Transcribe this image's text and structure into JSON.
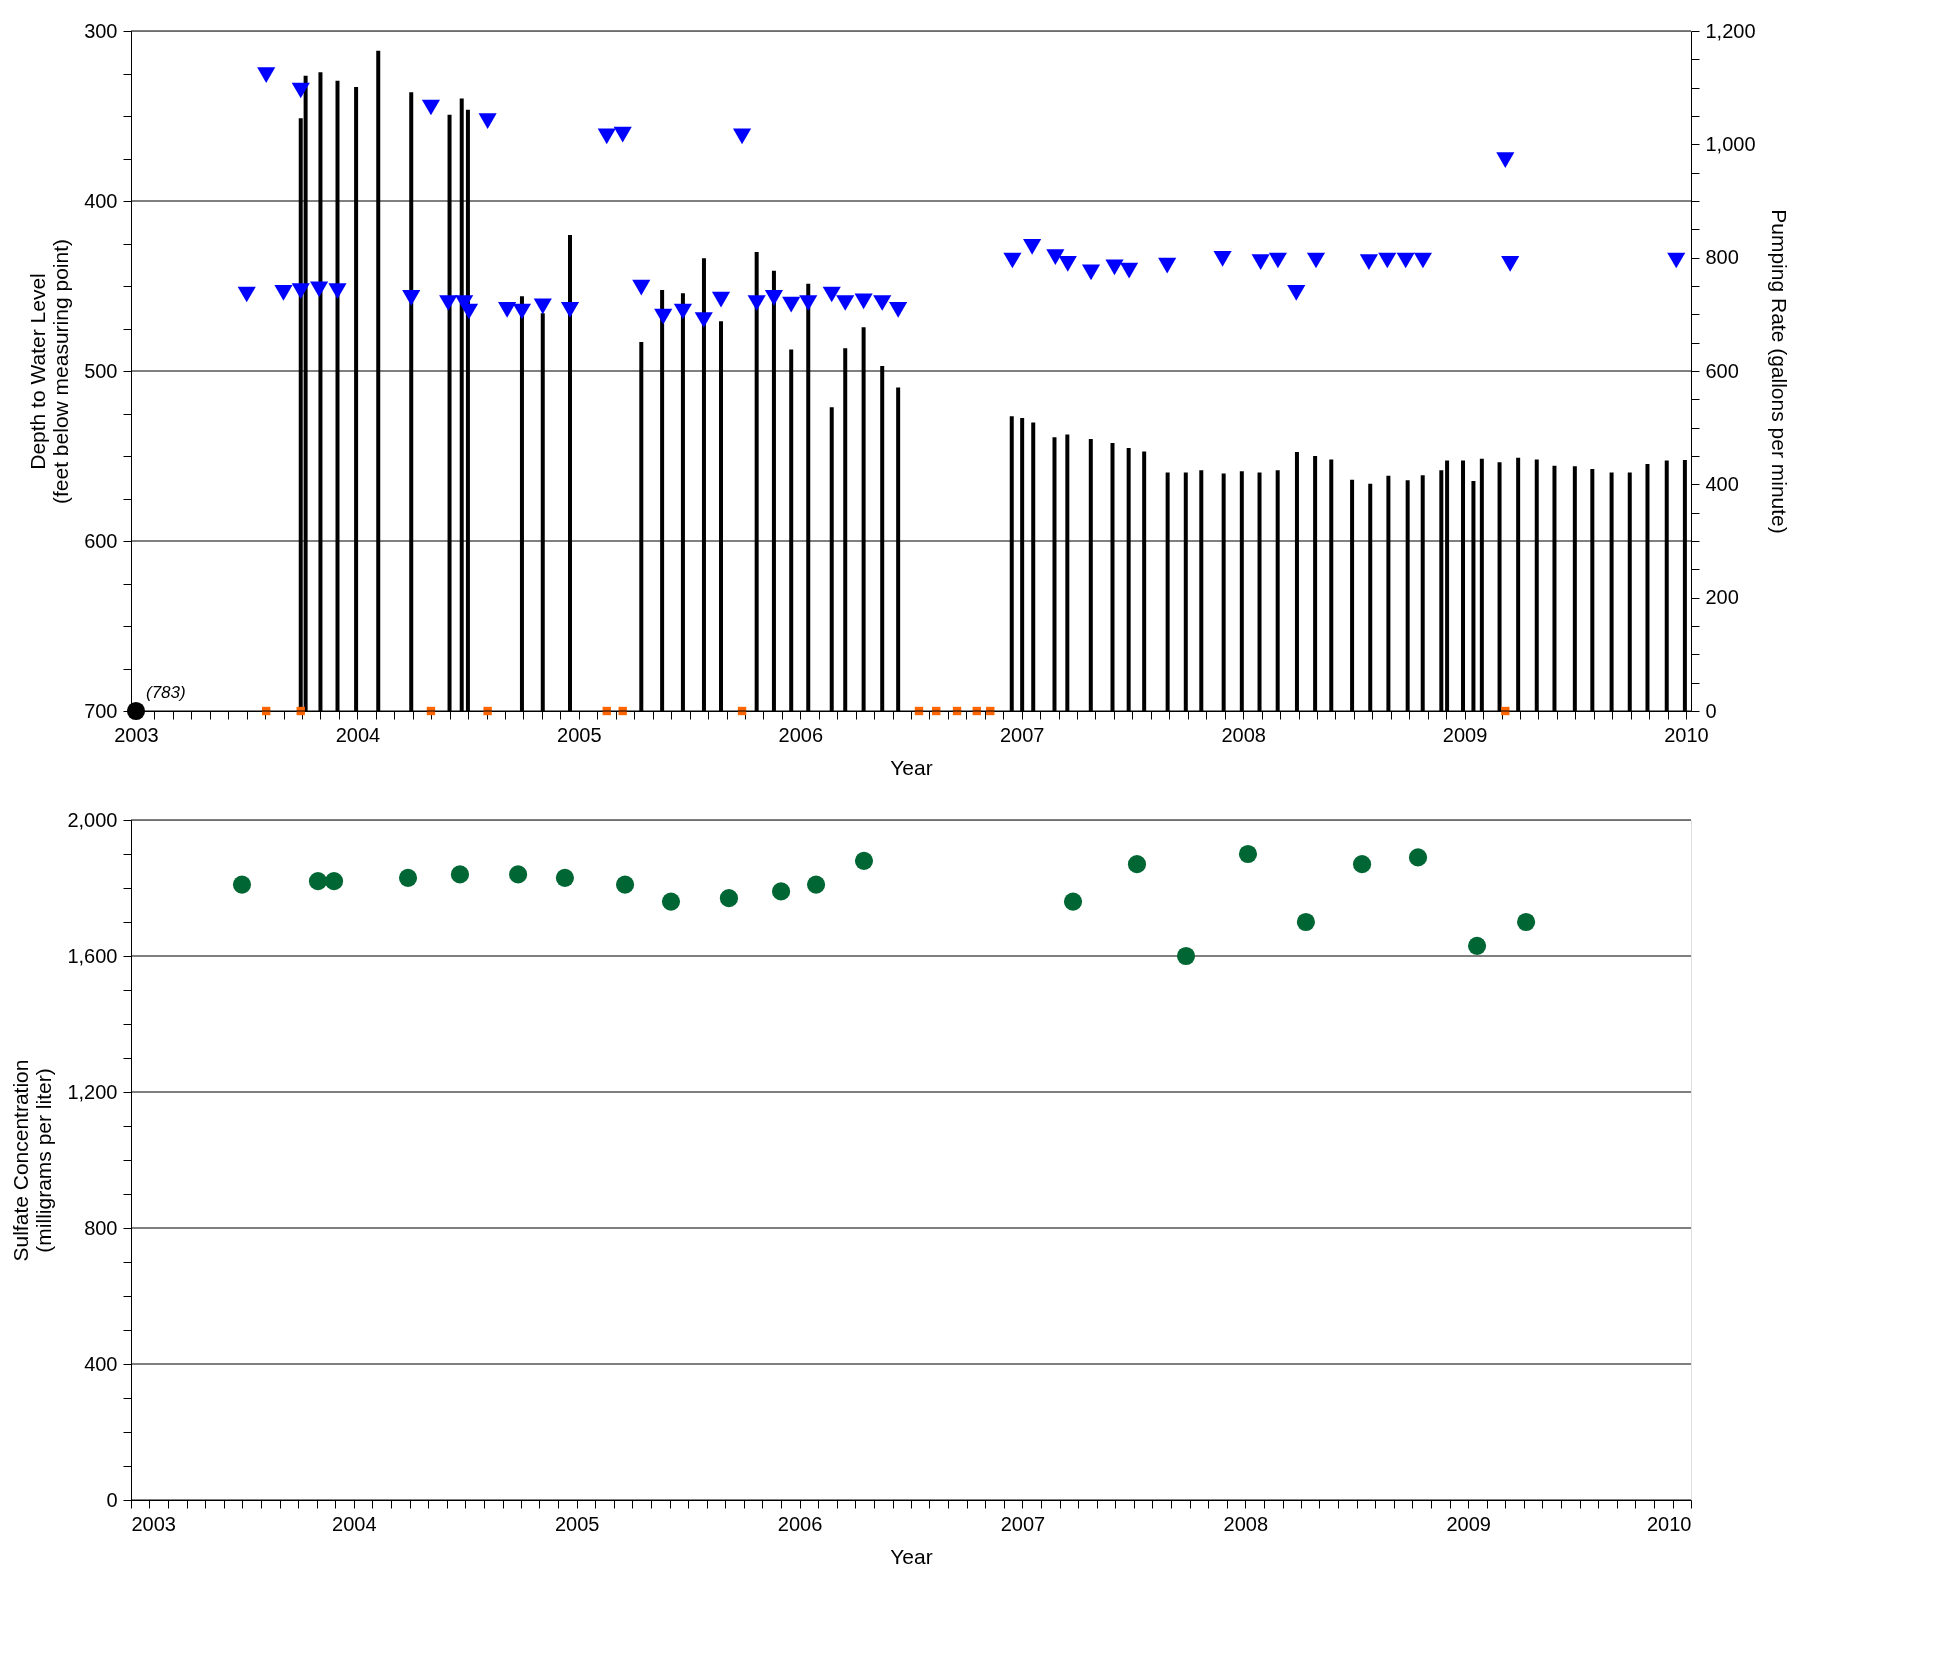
{
  "chart_data": [
    {
      "type": "scatter",
      "xlabel": "Year",
      "ylabel": "Depth to Water Level\n(feet below measuring point)",
      "y2label": "Pumping Rate (gallons per minute)",
      "xlim": [
        2003,
        2010
      ],
      "ylim": [
        700,
        300
      ],
      "y2lim": [
        0,
        1200
      ],
      "grid": "y",
      "xticks": [
        2003,
        {
          "value": 2003.083,
          "label": null
        },
        {
          "value": 2003.167,
          "label": null
        },
        {
          "value": 2003.25,
          "label": null
        },
        {
          "value": 2003.333,
          "label": null
        },
        {
          "value": 2003.417,
          "label": null
        },
        {
          "value": 2003.5,
          "label": null
        },
        {
          "value": 2003.583,
          "label": null
        },
        {
          "value": 2003.667,
          "label": null
        },
        {
          "value": 2003.75,
          "label": null
        },
        {
          "value": 2003.833,
          "label": null
        },
        {
          "value": 2003.917,
          "label": null
        },
        2004,
        {
          "value": 2004.083,
          "label": null
        },
        {
          "value": 2004.167,
          "label": null
        },
        {
          "value": 2004.25,
          "label": null
        },
        {
          "value": 2004.333,
          "label": null
        },
        {
          "value": 2004.417,
          "label": null
        },
        {
          "value": 2004.5,
          "label": null
        },
        {
          "value": 2004.583,
          "label": null
        },
        {
          "value": 2004.667,
          "label": null
        },
        {
          "value": 2004.75,
          "label": null
        },
        {
          "value": 2004.833,
          "label": null
        },
        {
          "value": 2004.917,
          "label": null
        },
        2005,
        {
          "value": 2005.083,
          "label": null
        },
        {
          "value": 2005.167,
          "label": null
        },
        {
          "value": 2005.25,
          "label": null
        },
        {
          "value": 2005.333,
          "label": null
        },
        {
          "value": 2005.417,
          "label": null
        },
        {
          "value": 2005.5,
          "label": null
        },
        {
          "value": 2005.583,
          "label": null
        },
        {
          "value": 2005.667,
          "label": null
        },
        {
          "value": 2005.75,
          "label": null
        },
        {
          "value": 2005.833,
          "label": null
        },
        {
          "value": 2005.917,
          "label": null
        },
        2006,
        {
          "value": 2006.083,
          "label": null
        },
        {
          "value": 2006.167,
          "label": null
        },
        {
          "value": 2006.25,
          "label": null
        },
        {
          "value": 2006.333,
          "label": null
        },
        {
          "value": 2006.417,
          "label": null
        },
        {
          "value": 2006.5,
          "label": null
        },
        {
          "value": 2006.583,
          "label": null
        },
        {
          "value": 2006.667,
          "label": null
        },
        {
          "value": 2006.75,
          "label": null
        },
        {
          "value": 2006.833,
          "label": null
        },
        {
          "value": 2006.917,
          "label": null
        },
        2007,
        {
          "value": 2007.083,
          "label": null
        },
        {
          "value": 2007.167,
          "label": null
        },
        {
          "value": 2007.25,
          "label": null
        },
        {
          "value": 2007.333,
          "label": null
        },
        {
          "value": 2007.417,
          "label": null
        },
        {
          "value": 2007.5,
          "label": null
        },
        {
          "value": 2007.583,
          "label": null
        },
        {
          "value": 2007.667,
          "label": null
        },
        {
          "value": 2007.75,
          "label": null
        },
        {
          "value": 2007.833,
          "label": null
        },
        {
          "value": 2007.917,
          "label": null
        },
        2008,
        {
          "value": 2008.083,
          "label": null
        },
        {
          "value": 2008.167,
          "label": null
        },
        {
          "value": 2008.25,
          "label": null
        },
        {
          "value": 2008.333,
          "label": null
        },
        {
          "value": 2008.417,
          "label": null
        },
        {
          "value": 2008.5,
          "label": null
        },
        {
          "value": 2008.583,
          "label": null
        },
        {
          "value": 2008.667,
          "label": null
        },
        {
          "value": 2008.75,
          "label": null
        },
        {
          "value": 2008.833,
          "label": null
        },
        {
          "value": 2008.917,
          "label": null
        },
        2009,
        {
          "value": 2009.083,
          "label": null
        },
        {
          "value": 2009.167,
          "label": null
        },
        {
          "value": 2009.25,
          "label": null
        },
        {
          "value": 2009.333,
          "label": null
        },
        {
          "value": 2009.417,
          "label": null
        },
        {
          "value": 2009.5,
          "label": null
        },
        {
          "value": 2009.583,
          "label": null
        },
        {
          "value": 2009.667,
          "label": null
        },
        {
          "value": 2009.75,
          "label": null
        },
        {
          "value": 2009.833,
          "label": null
        },
        {
          "value": 2009.917,
          "label": null
        },
        2010
      ],
      "yticks": [
        300,
        {
          "value": 325,
          "label": null
        },
        {
          "value": 350,
          "label": null
        },
        {
          "value": 375,
          "label": null
        },
        400,
        {
          "value": 425,
          "label": null
        },
        {
          "value": 450,
          "label": null
        },
        {
          "value": 475,
          "label": null
        },
        500,
        {
          "value": 525,
          "label": null
        },
        {
          "value": 550,
          "label": null
        },
        {
          "value": 575,
          "label": null
        },
        600,
        {
          "value": 625,
          "label": null
        },
        {
          "value": 650,
          "label": null
        },
        {
          "value": 675,
          "label": null
        },
        700
      ],
      "y2ticks": [
        0,
        {
          "value": 50,
          "label": null
        },
        {
          "value": 100,
          "label": null
        },
        {
          "value": 150,
          "label": null
        },
        200,
        {
          "value": 250,
          "label": null
        },
        {
          "value": 300,
          "label": null
        },
        {
          "value": 350,
          "label": null
        },
        400,
        {
          "value": 450,
          "label": null
        },
        {
          "value": 500,
          "label": null
        },
        {
          "value": 550,
          "label": null
        },
        600,
        {
          "value": 650,
          "label": null
        },
        {
          "value": 700,
          "label": null
        },
        {
          "value": 750,
          "label": null
        },
        800,
        {
          "value": 850,
          "label": null
        },
        {
          "value": 900,
          "label": null
        },
        {
          "value": 950,
          "label": null
        },
        {
          "value": 1000,
          "label": "1,000"
        },
        {
          "value": 1050,
          "label": null
        },
        {
          "value": 1100,
          "label": null
        },
        {
          "value": 1150,
          "label": null
        },
        {
          "value": 1200,
          "label": "1,200"
        }
      ],
      "series": [
        {
          "type": "bar",
          "axis": "y2",
          "color": "#000000",
          "x": [
            2003.744,
            2003.766,
            2003.833,
            2003.91,
            2003.994,
            2004.094,
            2004.243,
            2004.416,
            2004.471,
            2004.499,
            2004.743,
            2004.837,
            2004.96,
            2005.282,
            2005.376,
            2005.47,
            2005.565,
            2005.642,
            2005.803,
            2005.881,
            2005.959,
            2006.036,
            2006.142,
            2006.203,
            2006.286,
            2006.37,
            2006.442,
            2006.955,
            2007.002,
            2007.052,
            2007.148,
            2007.206,
            2007.312,
            2007.41,
            2007.483,
            2007.553,
            2007.659,
            2007.741,
            2007.811,
            2007.912,
            2007.994,
            2008.074,
            2008.156,
            2008.243,
            2008.325,
            2008.398,
            2008.492,
            2008.574,
            2008.656,
            2008.743,
            2008.811,
            2008.895,
            2008.921,
            2008.993,
            2009.04,
            2009.078,
            2009.158,
            2009.242,
            2009.326,
            2009.406,
            2009.498,
            2009.577,
            2009.664,
            2009.746,
            2009.826,
            2009.913,
            2009.995
          ],
          "values": [
            1046,
            1121,
            1127,
            1112,
            1101,
            1165,
            1092,
            1052,
            1081,
            1061,
            732,
            702,
            840,
            651,
            743,
            737,
            799,
            688,
            810,
            777,
            638,
            754,
            536,
            640,
            677,
            609,
            571,
            520,
            517,
            509,
            483,
            488,
            480,
            473,
            464,
            458,
            421,
            421,
            425,
            419,
            423,
            421,
            425,
            457,
            450,
            444,
            408,
            401,
            415,
            407,
            416,
            425,
            442,
            442,
            406,
            445,
            439,
            447,
            444,
            433,
            432,
            427,
            421,
            421,
            436,
            442,
            443
          ]
        },
        {
          "type": "scatter",
          "marker": "square",
          "axis": "y2",
          "color": "#ff6600",
          "x": [
            2003.588,
            2003.744,
            2004.332,
            2004.588,
            2005.126,
            2005.198,
            2005.737,
            2006.536,
            2006.614,
            2006.708,
            2006.797,
            2006.858,
            2009.184
          ],
          "values": [
            0,
            0,
            0,
            0,
            0,
            0,
            0,
            0,
            0,
            0,
            0,
            0,
            0
          ]
        },
        {
          "type": "scatter",
          "marker": "triangle",
          "color": "#0000ff",
          "x": [
            2003.588,
            2003.744,
            2004.332,
            2004.588,
            2005.126,
            2005.198,
            2005.737,
            2009.184
          ],
          "values": [
            326,
            335,
            345,
            353,
            362,
            361,
            362,
            376
          ]
        },
        {
          "type": "scatter",
          "marker": "triangle",
          "color": "#0000ff",
          "x": [
            2003.5,
            2003.666,
            2003.744,
            2003.827,
            2003.91,
            2004.243,
            2004.41,
            2004.482,
            2004.504,
            2004.676,
            2004.743,
            2004.837,
            2004.96,
            2005.282,
            2005.381,
            2005.47,
            2005.564,
            2005.642,
            2005.803,
            2005.881,
            2005.959,
            2006.036,
            2006.142,
            2006.203,
            2006.286,
            2006.37,
            2006.442,
            2006.958,
            2007.047,
            2007.152,
            2007.208,
            2007.313,
            2007.419,
            2007.485,
            2007.657,
            2007.907,
            2008.079,
            2008.157,
            2008.24,
            2008.329,
            2008.568,
            2008.651,
            2008.734,
            2008.812,
            2009.206,
            2009.956
          ],
          "values": [
            455,
            454,
            453,
            452,
            453,
            457,
            460,
            460,
            465,
            464,
            465,
            462,
            464,
            451,
            468,
            465,
            470,
            458,
            460,
            457,
            461,
            460,
            455,
            460,
            459,
            460,
            464,
            435,
            427,
            433,
            437,
            442,
            439,
            441,
            438,
            434,
            436,
            435,
            454,
            435,
            436,
            435,
            435,
            435,
            437,
            435
          ]
        },
        {
          "type": "scatter",
          "marker": "circle",
          "color": "#000000",
          "x": [
            2003
          ],
          "values": [
            700
          ]
        }
      ],
      "annotations": [
        {
          "text": "(783)",
          "x": 2003,
          "y": 700
        }
      ]
    },
    {
      "type": "scatter",
      "xlabel": "Year",
      "ylabel": "Sulfate Concentration\n(milligrams per liter)",
      "xlim": [
        2003,
        2010
      ],
      "ylim": [
        0,
        2000
      ],
      "grid": "y",
      "marker": "circle",
      "xticks": [
        2003,
        {
          "value": 2003.083,
          "label": null
        },
        {
          "value": 2003.167,
          "label": null
        },
        {
          "value": 2003.25,
          "label": null
        },
        {
          "value": 2003.333,
          "label": null
        },
        {
          "value": 2003.417,
          "label": null
        },
        {
          "value": 2003.5,
          "label": null
        },
        {
          "value": 2003.583,
          "label": null
        },
        {
          "value": 2003.667,
          "label": null
        },
        {
          "value": 2003.75,
          "label": null
        },
        {
          "value": 2003.833,
          "label": null
        },
        {
          "value": 2003.917,
          "label": null
        },
        2004,
        {
          "value": 2004.083,
          "label": null
        },
        {
          "value": 2004.167,
          "label": null
        },
        {
          "value": 2004.25,
          "label": null
        },
        {
          "value": 2004.333,
          "label": null
        },
        {
          "value": 2004.417,
          "label": null
        },
        {
          "value": 2004.5,
          "label": null
        },
        {
          "value": 2004.583,
          "label": null
        },
        {
          "value": 2004.667,
          "label": null
        },
        {
          "value": 2004.75,
          "label": null
        },
        {
          "value": 2004.833,
          "label": null
        },
        {
          "value": 2004.917,
          "label": null
        },
        2005,
        {
          "value": 2005.083,
          "label": null
        },
        {
          "value": 2005.167,
          "label": null
        },
        {
          "value": 2005.25,
          "label": null
        },
        {
          "value": 2005.333,
          "label": null
        },
        {
          "value": 2005.417,
          "label": null
        },
        {
          "value": 2005.5,
          "label": null
        },
        {
          "value": 2005.583,
          "label": null
        },
        {
          "value": 2005.667,
          "label": null
        },
        {
          "value": 2005.75,
          "label": null
        },
        {
          "value": 2005.833,
          "label": null
        },
        {
          "value": 2005.917,
          "label": null
        },
        2006,
        {
          "value": 2006.083,
          "label": null
        },
        {
          "value": 2006.167,
          "label": null
        },
        {
          "value": 2006.25,
          "label": null
        },
        {
          "value": 2006.333,
          "label": null
        },
        {
          "value": 2006.417,
          "label": null
        },
        {
          "value": 2006.5,
          "label": null
        },
        {
          "value": 2006.583,
          "label": null
        },
        {
          "value": 2006.667,
          "label": null
        },
        {
          "value": 2006.75,
          "label": null
        },
        {
          "value": 2006.833,
          "label": null
        },
        {
          "value": 2006.917,
          "label": null
        },
        2007,
        {
          "value": 2007.083,
          "label": null
        },
        {
          "value": 2007.167,
          "label": null
        },
        {
          "value": 2007.25,
          "label": null
        },
        {
          "value": 2007.333,
          "label": null
        },
        {
          "value": 2007.417,
          "label": null
        },
        {
          "value": 2007.5,
          "label": null
        },
        {
          "value": 2007.583,
          "label": null
        },
        {
          "value": 2007.667,
          "label": null
        },
        {
          "value": 2007.75,
          "label": null
        },
        {
          "value": 2007.833,
          "label": null
        },
        {
          "value": 2007.917,
          "label": null
        },
        2008,
        {
          "value": 2008.083,
          "label": null
        },
        {
          "value": 2008.167,
          "label": null
        },
        {
          "value": 2008.25,
          "label": null
        },
        {
          "value": 2008.333,
          "label": null
        },
        {
          "value": 2008.417,
          "label": null
        },
        {
          "value": 2008.5,
          "label": null
        },
        {
          "value": 2008.583,
          "label": null
        },
        {
          "value": 2008.667,
          "label": null
        },
        {
          "value": 2008.75,
          "label": null
        },
        {
          "value": 2008.833,
          "label": null
        },
        {
          "value": 2008.917,
          "label": null
        },
        2009,
        {
          "value": 2009.083,
          "label": null
        },
        {
          "value": 2009.167,
          "label": null
        },
        {
          "value": 2009.25,
          "label": null
        },
        {
          "value": 2009.333,
          "label": null
        },
        {
          "value": 2009.417,
          "label": null
        },
        {
          "value": 2009.5,
          "label": null
        },
        {
          "value": 2009.583,
          "label": null
        },
        {
          "value": 2009.667,
          "label": null
        },
        {
          "value": 2009.75,
          "label": null
        },
        {
          "value": 2009.833,
          "label": null
        },
        {
          "value": 2009.917,
          "label": null
        },
        2010
      ],
      "yticks": [
        0,
        {
          "value": 100,
          "label": null
        },
        {
          "value": 200,
          "label": null
        },
        {
          "value": 300,
          "label": null
        },
        400,
        {
          "value": 500,
          "label": null
        },
        {
          "value": 600,
          "label": null
        },
        {
          "value": 700,
          "label": null
        },
        800,
        {
          "value": 900,
          "label": null
        },
        {
          "value": 1000,
          "label": null
        },
        {
          "value": 1100,
          "label": null
        },
        {
          "value": 1200,
          "label": "1,200"
        },
        {
          "value": 1300,
          "label": null
        },
        {
          "value": 1400,
          "label": null
        },
        {
          "value": 1500,
          "label": null
        },
        {
          "value": 1600,
          "label": "1,600"
        },
        {
          "value": 1700,
          "label": null
        },
        {
          "value": 1800,
          "label": null
        },
        {
          "value": 1900,
          "label": null
        },
        {
          "value": 2000,
          "label": "2,000"
        }
      ],
      "series": [
        {
          "color": "#006633",
          "x": [
            2003.498,
            2003.839,
            2003.911,
            2004.243,
            2004.476,
            2004.737,
            2004.947,
            2005.217,
            2005.423,
            2005.683,
            2005.917,
            2006.074,
            2006.289,
            2007.227,
            2007.514,
            2007.734,
            2008.012,
            2008.272,
            2008.524,
            2008.775,
            2009.04,
            2009.26
          ],
          "values": [
            1810,
            1820,
            1820,
            1830,
            1840,
            1840,
            1830,
            1810,
            1760,
            1770,
            1790,
            1810,
            1880,
            1760,
            1870,
            1600,
            1900,
            1700,
            1870,
            1890,
            1630,
            1700
          ]
        }
      ]
    }
  ]
}
